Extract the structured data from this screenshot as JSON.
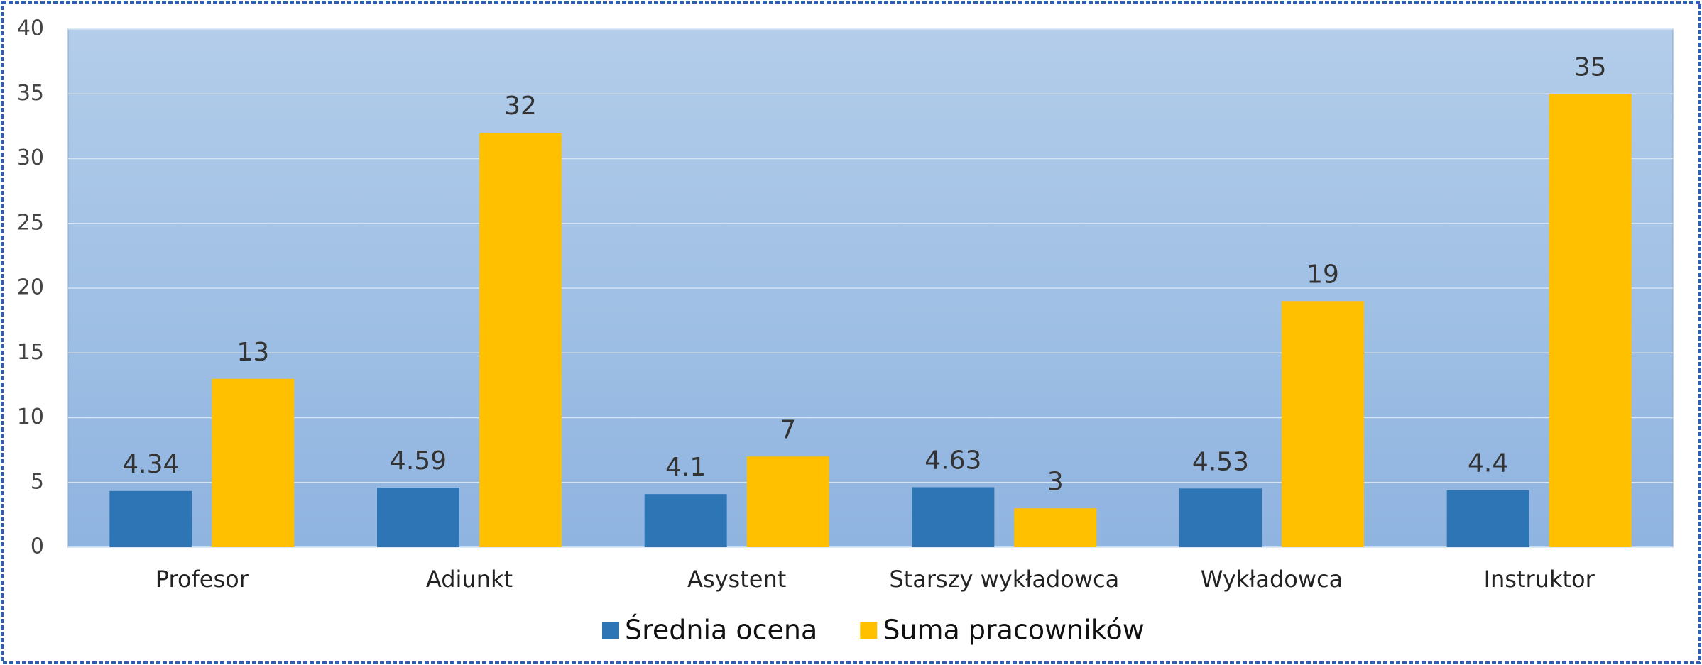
{
  "chart_data": {
    "type": "bar",
    "categories": [
      "Profesor",
      "Adiunkt",
      "Asystent",
      "Starszy wykładowca",
      "Wykładowca",
      "Instruktor"
    ],
    "series": [
      {
        "name": "Średnia ocena",
        "color": "#2e75b6",
        "values": [
          4.34,
          4.59,
          4.1,
          4.63,
          4.53,
          4.4
        ]
      },
      {
        "name": "Suma pracowników",
        "color": "#ffc000",
        "values": [
          13,
          32,
          7,
          3,
          19,
          35
        ]
      }
    ],
    "ylim": [
      0,
      40
    ],
    "yticks": [
      0,
      5,
      10,
      15,
      20,
      25,
      30,
      35,
      40
    ],
    "grid": true,
    "legend": "bottom"
  }
}
